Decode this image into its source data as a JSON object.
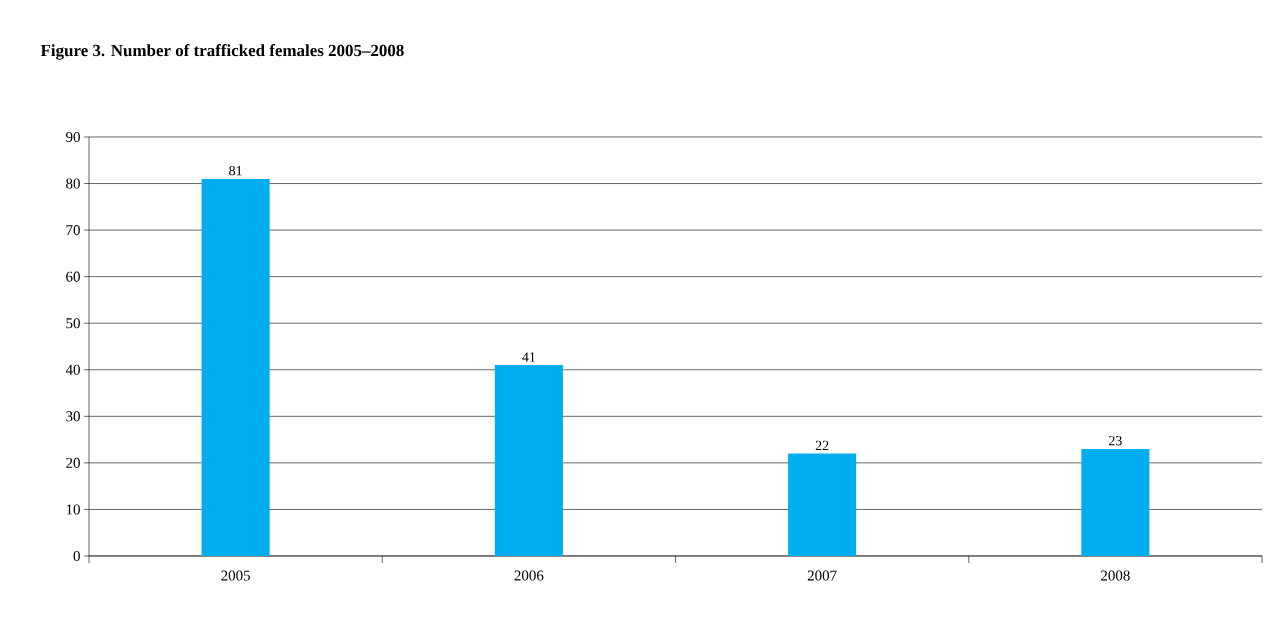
{
  "chart_data": {
    "type": "bar",
    "title": "Figure 3. Number of trafficked females 2005–2008",
    "categories": [
      "2005",
      "2006",
      "2007",
      "2008"
    ],
    "values": [
      81,
      41,
      22,
      23
    ],
    "color": "#00adee",
    "ylim": [
      0,
      90
    ],
    "yticks": [
      0,
      10,
      20,
      30,
      40,
      50,
      60,
      70,
      80,
      90
    ],
    "grid": "y",
    "data_labels": true
  }
}
